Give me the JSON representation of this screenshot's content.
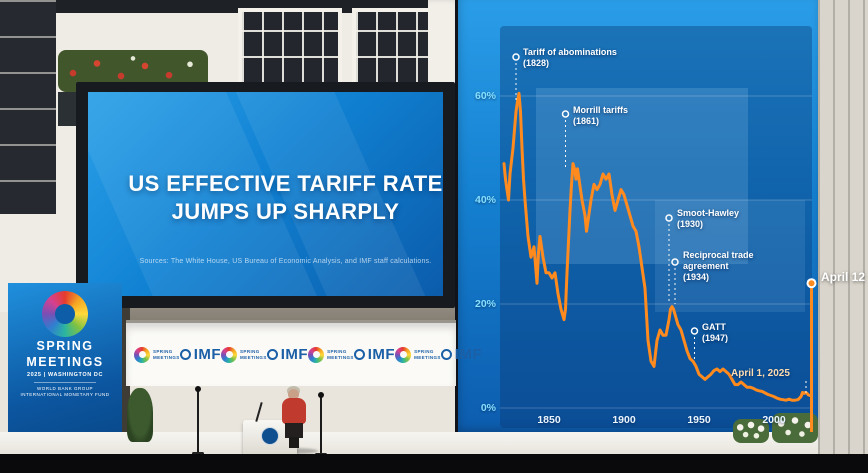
{
  "slide": {
    "title_line1": "US EFFECTIVE TARIFF RATE",
    "title_line2": "JUMPS UP SHARPLY",
    "sources": "Sources: The White House, US Bureau of Economic Analysis, and IMF staff calculations."
  },
  "stage": {
    "backdrop": {
      "line1": "SPRING",
      "line2": "MEETINGS",
      "line3": "2025 | WASHINGTON DC",
      "line4": "WORLD BANK GROUP",
      "line5": "INTERNATIONAL MONETARY FUND"
    },
    "banner_imf_label": "IMF",
    "banner_spring_line1": "SPRING",
    "banner_spring_line2": "MEETINGS"
  },
  "chart_data": {
    "type": "line",
    "title": "US effective tariff rate",
    "xlabel": "",
    "ylabel": "",
    "xlim": [
      1820,
      2025
    ],
    "ylim": [
      0,
      65
    ],
    "grid": true,
    "legend": "none",
    "line_color": "#ff8a1e",
    "y_ticks": [
      "60%",
      "40%",
      "20%",
      "0%"
    ],
    "x_ticks": [
      "1850",
      "1900",
      "1950",
      "2000"
    ],
    "series": [
      {
        "name": "US effective tariff rate (%)",
        "points": [
          [
            1820,
            47
          ],
          [
            1821,
            44
          ],
          [
            1823,
            40
          ],
          [
            1824,
            45
          ],
          [
            1826,
            50
          ],
          [
            1828,
            57
          ],
          [
            1829,
            59
          ],
          [
            1830,
            60.5
          ],
          [
            1831,
            57
          ],
          [
            1832,
            50
          ],
          [
            1833,
            44
          ],
          [
            1834,
            40
          ],
          [
            1836,
            33
          ],
          [
            1838,
            29
          ],
          [
            1840,
            31
          ],
          [
            1842,
            24
          ],
          [
            1843,
            30
          ],
          [
            1844,
            33
          ],
          [
            1846,
            29
          ],
          [
            1848,
            26
          ],
          [
            1850,
            26
          ],
          [
            1852,
            25
          ],
          [
            1854,
            26
          ],
          [
            1856,
            22
          ],
          [
            1858,
            19
          ],
          [
            1860,
            17
          ],
          [
            1861,
            19
          ],
          [
            1862,
            26
          ],
          [
            1863,
            32
          ],
          [
            1864,
            38
          ],
          [
            1865,
            43
          ],
          [
            1866,
            47
          ],
          [
            1867,
            46
          ],
          [
            1868,
            44
          ],
          [
            1869,
            46
          ],
          [
            1870,
            44
          ],
          [
            1872,
            40
          ],
          [
            1874,
            37
          ],
          [
            1875,
            34
          ],
          [
            1876,
            36
          ],
          [
            1878,
            40
          ],
          [
            1880,
            43
          ],
          [
            1882,
            42
          ],
          [
            1884,
            43
          ],
          [
            1886,
            45
          ],
          [
            1888,
            44
          ],
          [
            1890,
            45
          ],
          [
            1892,
            41
          ],
          [
            1894,
            38
          ],
          [
            1896,
            40
          ],
          [
            1898,
            42
          ],
          [
            1900,
            41
          ],
          [
            1902,
            39
          ],
          [
            1904,
            37
          ],
          [
            1906,
            35
          ],
          [
            1908,
            34
          ],
          [
            1910,
            31
          ],
          [
            1912,
            27
          ],
          [
            1914,
            23
          ],
          [
            1915,
            18
          ],
          [
            1916,
            13
          ],
          [
            1918,
            9
          ],
          [
            1920,
            8
          ],
          [
            1922,
            13
          ],
          [
            1924,
            15
          ],
          [
            1926,
            14
          ],
          [
            1928,
            14
          ],
          [
            1930,
            17
          ],
          [
            1931,
            19
          ],
          [
            1932,
            19.5
          ],
          [
            1933,
            19
          ],
          [
            1934,
            18
          ],
          [
            1935,
            17
          ],
          [
            1936,
            16
          ],
          [
            1938,
            15
          ],
          [
            1940,
            13
          ],
          [
            1942,
            11
          ],
          [
            1944,
            9.5
          ],
          [
            1946,
            9
          ],
          [
            1948,
            8
          ],
          [
            1950,
            6.5
          ],
          [
            1952,
            6
          ],
          [
            1954,
            5.5
          ],
          [
            1956,
            6
          ],
          [
            1958,
            6.5
          ],
          [
            1960,
            7.2
          ],
          [
            1962,
            7.5
          ],
          [
            1964,
            7
          ],
          [
            1966,
            7.5
          ],
          [
            1968,
            7
          ],
          [
            1970,
            6.5
          ],
          [
            1972,
            5.5
          ],
          [
            1974,
            4.5
          ],
          [
            1976,
            4.5
          ],
          [
            1978,
            5
          ],
          [
            1980,
            4.5
          ],
          [
            1982,
            4
          ],
          [
            1984,
            4
          ],
          [
            1986,
            3.8
          ],
          [
            1988,
            3.5
          ],
          [
            1990,
            3.3
          ],
          [
            1992,
            3.2
          ],
          [
            1994,
            2.9
          ],
          [
            1996,
            2.6
          ],
          [
            1998,
            2.4
          ],
          [
            2000,
            2.2
          ],
          [
            2002,
            1.9
          ],
          [
            2004,
            1.7
          ],
          [
            2006,
            1.6
          ],
          [
            2008,
            1.5
          ],
          [
            2010,
            1.7
          ],
          [
            2012,
            1.5
          ],
          [
            2014,
            1.5
          ],
          [
            2016,
            1.6
          ],
          [
            2018,
            2.2
          ],
          [
            2019,
            3
          ],
          [
            2020,
            2.8
          ],
          [
            2021,
            3
          ],
          [
            2022,
            2.8
          ],
          [
            2023,
            2.5
          ],
          [
            2024,
            2.4
          ],
          [
            2025,
            2.5
          ],
          [
            2025,
            24
          ]
        ]
      }
    ],
    "annotations": [
      {
        "label": "Tariff of abominations",
        "sub": "(1828)",
        "year": 1828
      },
      {
        "label": "Morrill tariffs",
        "sub": "(1861)",
        "year": 1861
      },
      {
        "label": "Smoot-Hawley",
        "sub": "(1930)",
        "year": 1930
      },
      {
        "label": "Reciprocal trade agreement",
        "sub": "(1934)",
        "year": 1934
      },
      {
        "label": "GATT",
        "sub": "(1947)",
        "year": 1947
      },
      {
        "label": "April 1, 2025",
        "year": 2025
      },
      {
        "label": "April 12",
        "year": 2025
      }
    ],
    "end_dot": {
      "year": 2025,
      "value": 24
    }
  }
}
